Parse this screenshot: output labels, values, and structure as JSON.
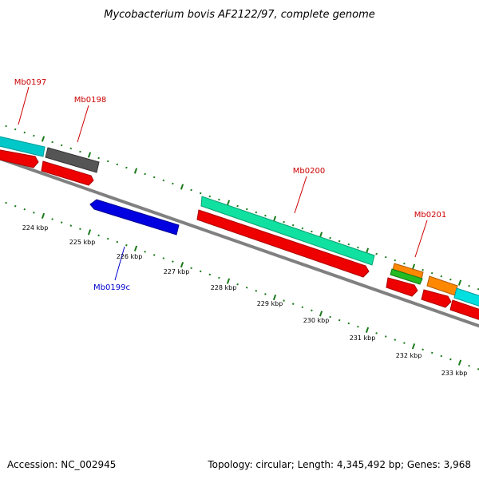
{
  "title": "Mycobacterium bovis AF2122/97, complete genome",
  "footer": {
    "accession": "Accession: NC_002945",
    "summary": "Topology: circular; Length: 4,345,492 bp; Genes: 3,968"
  },
  "colors": {
    "label_forward": "#cc0000",
    "label_reverse": "#0000cc",
    "tick": "#1a7a1a",
    "backbone": "#808080"
  },
  "scale_labels": [
    "224 kbp",
    "225 kbp",
    "226 kbp",
    "227 kbp",
    "228 kbp",
    "229 kbp",
    "230 kbp",
    "231 kbp",
    "232 kbp",
    "233 kbp"
  ],
  "genes": [
    {
      "name": "Mb0197",
      "strand": "forward",
      "color": "#00c8c8"
    },
    {
      "name": "Mb0198",
      "strand": "forward",
      "color": "#555555"
    },
    {
      "name": "Mb0199c",
      "strand": "reverse",
      "color": "#0000e0"
    },
    {
      "name": "Mb0200",
      "strand": "forward",
      "color": "#10e0a0"
    },
    {
      "name": "Mb0201",
      "strand": "forward",
      "color": "#ff8800"
    }
  ]
}
